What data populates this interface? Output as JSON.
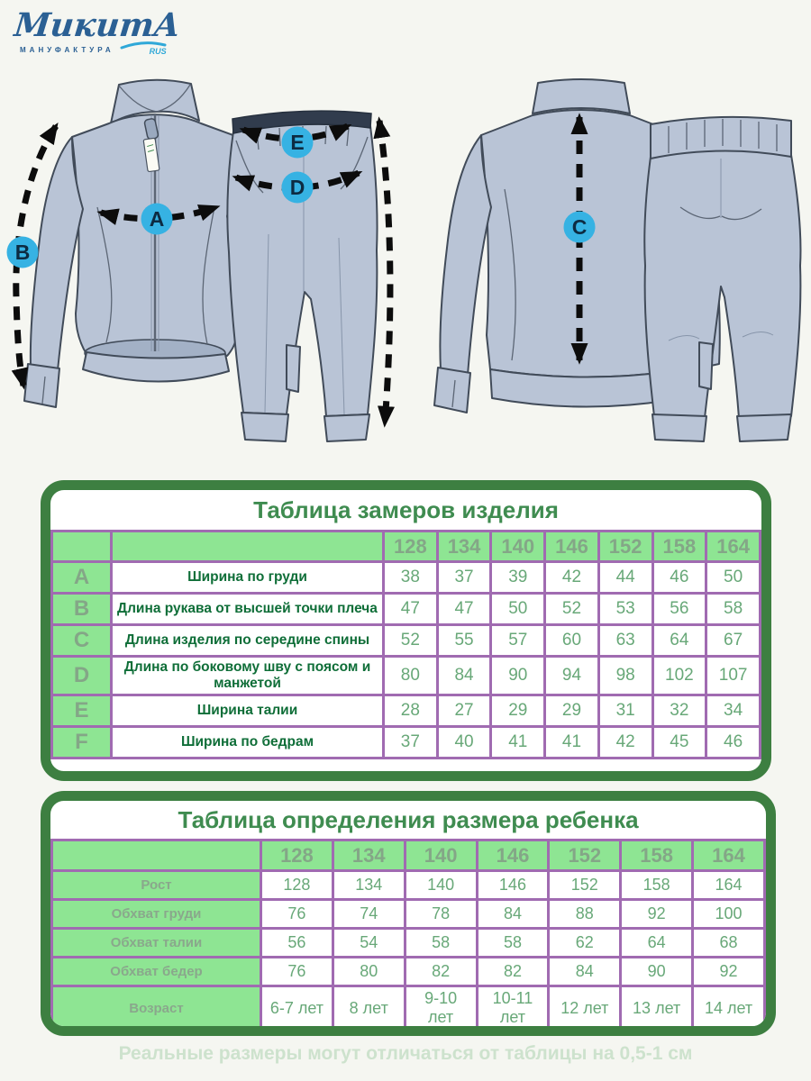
{
  "brand": {
    "name": "МикитА",
    "subtitle": "МАНУФАКТУРА",
    "suffix": "RUS"
  },
  "colors": {
    "frame_green": "#3d7f41",
    "cell_green": "#8ee593",
    "grid_purple": "#a06bb1",
    "title_green": "#3f8c50",
    "value_green": "#68a878",
    "marker_blue": "#36b2e3",
    "garment_fill": "#b9c4d6",
    "page_background": "#f5f6f1"
  },
  "diagram": {
    "markers": [
      {
        "label": "A"
      },
      {
        "label": "B"
      },
      {
        "label": "C"
      },
      {
        "label": "D"
      },
      {
        "label": "E"
      }
    ]
  },
  "measure_table": {
    "title": "Таблица замеров изделия",
    "sizes": [
      "128",
      "134",
      "140",
      "146",
      "152",
      "158",
      "164"
    ],
    "rows": [
      {
        "key": "A",
        "label": "Ширина по груди",
        "values": [
          "38",
          "37",
          "39",
          "42",
          "44",
          "46",
          "50"
        ]
      },
      {
        "key": "B",
        "label": "Длина рукава от высшей точки плеча",
        "values": [
          "47",
          "47",
          "50",
          "52",
          "53",
          "56",
          "58"
        ]
      },
      {
        "key": "C",
        "label": "Длина изделия по середине спины",
        "values": [
          "52",
          "55",
          "57",
          "60",
          "63",
          "64",
          "67"
        ]
      },
      {
        "key": "D",
        "label": "Длина по боковому шву с поясом и манжетой",
        "values": [
          "80",
          "84",
          "90",
          "94",
          "98",
          "102",
          "107"
        ]
      },
      {
        "key": "E",
        "label": "Ширина талии",
        "values": [
          "28",
          "27",
          "29",
          "29",
          "31",
          "32",
          "34"
        ]
      },
      {
        "key": "F",
        "label": "Ширина по бедрам",
        "values": [
          "37",
          "40",
          "41",
          "41",
          "42",
          "45",
          "46"
        ]
      }
    ]
  },
  "size_table": {
    "title": "Таблица определения размера ребенка",
    "sizes": [
      "128",
      "134",
      "140",
      "146",
      "152",
      "158",
      "164"
    ],
    "rows": [
      {
        "label": "Рост",
        "values": [
          "128",
          "134",
          "140",
          "146",
          "152",
          "158",
          "164"
        ]
      },
      {
        "label": "Обхват груди",
        "values": [
          "76",
          "74",
          "78",
          "84",
          "88",
          "92",
          "100"
        ]
      },
      {
        "label": "Обхват талии",
        "values": [
          "56",
          "54",
          "58",
          "58",
          "62",
          "64",
          "68"
        ]
      },
      {
        "label": "Обхват бедер",
        "values": [
          "76",
          "80",
          "82",
          "82",
          "84",
          "90",
          "92"
        ]
      },
      {
        "label": "Возраст",
        "values": [
          "6-7 лет",
          "8 лет",
          "9-10 лет",
          "10-11 лет",
          "12 лет",
          "13 лет",
          "14 лет"
        ]
      }
    ]
  },
  "footer": {
    "note": "Реальные размеры могут отличаться от таблицы на 0,5-1 см"
  }
}
